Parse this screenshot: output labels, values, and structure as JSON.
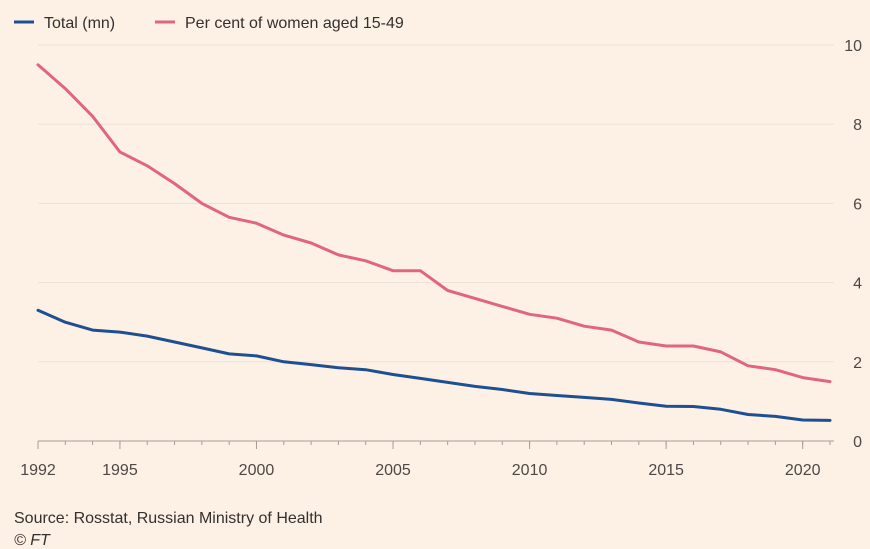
{
  "chart_data": {
    "type": "line",
    "x": [
      1992,
      1993,
      1994,
      1995,
      1996,
      1997,
      1998,
      1999,
      2000,
      2001,
      2002,
      2003,
      2004,
      2005,
      2006,
      2007,
      2008,
      2009,
      2010,
      2011,
      2012,
      2013,
      2014,
      2015,
      2016,
      2017,
      2018,
      2019,
      2020,
      2021
    ],
    "series": [
      {
        "name": "Total (mn)",
        "color": "#1d4f91",
        "values": [
          3.3,
          3.0,
          2.8,
          2.75,
          2.65,
          2.5,
          2.35,
          2.2,
          2.15,
          2.0,
          1.93,
          1.85,
          1.8,
          1.68,
          1.58,
          1.48,
          1.38,
          1.3,
          1.2,
          1.15,
          1.1,
          1.05,
          0.96,
          0.88,
          0.87,
          0.8,
          0.67,
          0.62,
          0.53,
          0.52
        ]
      },
      {
        "name": "Per cent of women aged 15-49",
        "color": "#e0657d",
        "values": [
          9.5,
          8.9,
          8.2,
          7.3,
          6.95,
          6.5,
          6.0,
          5.65,
          5.5,
          5.2,
          5.0,
          4.7,
          4.55,
          4.3,
          4.3,
          3.8,
          3.6,
          3.4,
          3.2,
          3.1,
          2.9,
          2.8,
          2.5,
          2.4,
          2.4,
          2.25,
          1.9,
          1.8,
          1.6,
          1.5
        ]
      }
    ],
    "x_ticks": [
      1992,
      1995,
      2000,
      2005,
      2010,
      2015,
      2020
    ],
    "x_tick_labels": [
      "1992",
      "1995",
      "2000",
      "2005",
      "2010",
      "2015",
      "2020"
    ],
    "y_ticks": [
      0,
      2,
      4,
      6,
      8,
      10
    ],
    "y_tick_labels": [
      "0",
      "2",
      "4",
      "6",
      "8",
      "10"
    ],
    "xlim": [
      1992,
      2021
    ],
    "ylim": [
      0,
      10
    ],
    "y_axis_side": "right",
    "grid": true,
    "legend_position": "top-left",
    "title": "",
    "xlabel": "",
    "ylabel": ""
  },
  "footer": {
    "source": "Source: Rosstat, Russian Ministry of Health",
    "credit": "© FT"
  },
  "colors": {
    "background": "#fdf1e6",
    "grid": "#ece1d6",
    "axis": "#a69d94"
  }
}
